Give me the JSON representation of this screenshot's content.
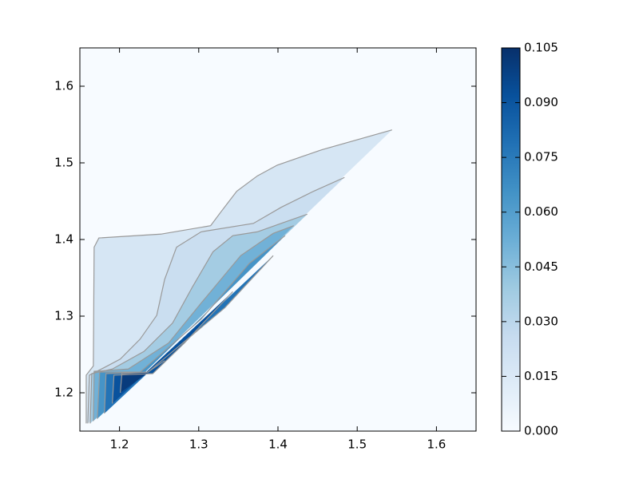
{
  "chart_data": {
    "type": "contour",
    "xlim": [
      1.15,
      1.65
    ],
    "ylim": [
      1.15,
      1.65
    ],
    "xticks": [
      1.2,
      1.3,
      1.4,
      1.5,
      1.6
    ],
    "yticks": [
      1.2,
      1.3,
      1.4,
      1.5,
      1.6
    ],
    "colormap": [
      "#f7fbff",
      "#deebf7",
      "#c6dbef",
      "#9ecae1",
      "#6baed6",
      "#4292c6",
      "#2171b5",
      "#08519c",
      "#08306b"
    ],
    "line_color": "#999999",
    "colorbar": {
      "clim": [
        0,
        0.105
      ],
      "ticks": [
        {
          "value": 0,
          "label": "0.000"
        },
        {
          "value": 0.015,
          "label": "0.015"
        },
        {
          "value": 0.03,
          "label": "0.030"
        },
        {
          "value": 0.045,
          "label": "0.045"
        },
        {
          "value": 0.06,
          "label": "0.060"
        },
        {
          "value": 0.075,
          "label": "0.075"
        },
        {
          "value": 0.09,
          "label": "0.090"
        },
        {
          "value": 0.105,
          "label": "0.105"
        }
      ]
    },
    "contours": [
      {
        "level": 0.0075,
        "x": [
          1.158,
          1.158,
          1.167,
          1.168,
          1.174,
          1.252,
          1.315,
          1.328,
          1.348,
          1.374,
          1.399,
          1.455,
          1.544
        ],
        "y": [
          1.16,
          1.223,
          1.235,
          1.39,
          1.402,
          1.407,
          1.418,
          1.436,
          1.463,
          1.483,
          1.497,
          1.517,
          1.543
        ]
      },
      {
        "level": 0.015,
        "x": [
          1.16,
          1.162,
          1.181,
          1.201,
          1.226,
          1.247,
          1.257,
          1.272,
          1.303,
          1.369,
          1.404,
          1.445,
          1.484
        ],
        "y": [
          1.16,
          1.223,
          1.233,
          1.244,
          1.27,
          1.301,
          1.348,
          1.39,
          1.41,
          1.421,
          1.442,
          1.463,
          1.481
        ]
      },
      {
        "level": 0.03,
        "x": [
          1.163,
          1.165,
          1.191,
          1.231,
          1.267,
          1.292,
          1.318,
          1.343,
          1.374,
          1.404,
          1.437
        ],
        "y": [
          1.16,
          1.225,
          1.231,
          1.254,
          1.291,
          1.338,
          1.384,
          1.405,
          1.41,
          1.421,
          1.433
        ]
      },
      {
        "level": 0.045,
        "x": [
          1.167,
          1.168,
          1.211,
          1.262,
          1.303,
          1.353,
          1.394,
          1.42
        ],
        "y": [
          1.163,
          1.228,
          1.231,
          1.265,
          1.317,
          1.379,
          1.408,
          1.418
        ]
      },
      {
        "level": 0.06,
        "x": [
          1.172,
          1.175,
          1.226,
          1.303,
          1.364,
          1.409
        ],
        "y": [
          1.166,
          1.227,
          1.227,
          1.296,
          1.369,
          1.405
        ]
      },
      {
        "level": 0.075,
        "x": [
          1.181,
          1.183,
          1.236,
          1.333,
          1.394
        ],
        "y": [
          1.173,
          1.225,
          1.227,
          1.311,
          1.379
        ]
      },
      {
        "level": 0.09,
        "x": [
          1.191,
          1.193,
          1.242,
          1.282,
          1.343
        ],
        "y": [
          1.186,
          1.223,
          1.225,
          1.265,
          1.332
        ]
      },
      {
        "level": 0.1,
        "x": [
          1.201,
          1.203,
          1.236,
          1.257
        ],
        "y": [
          1.2,
          1.225,
          1.227,
          1.242
        ]
      }
    ]
  }
}
